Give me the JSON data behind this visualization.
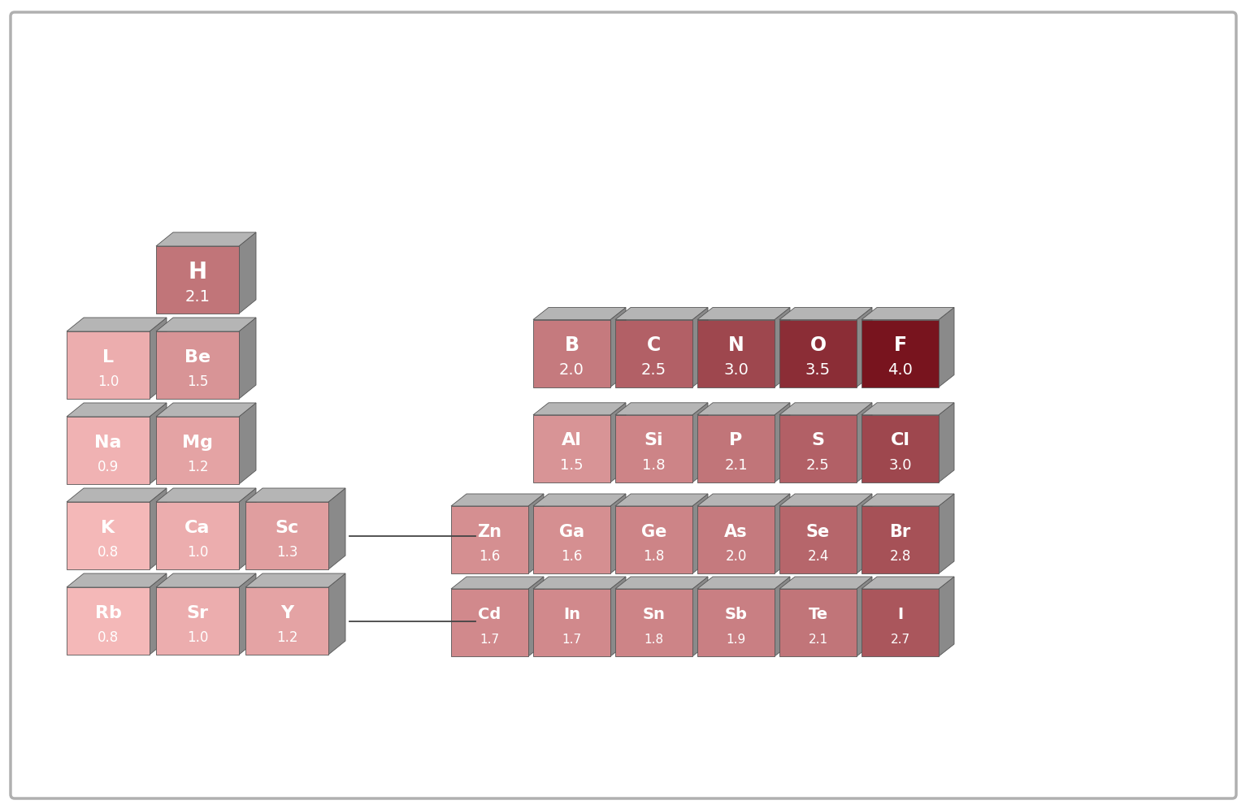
{
  "background": "#ffffff",
  "elements_left": [
    {
      "symbol": "H",
      "value": "2.1",
      "col": 1,
      "row": 0
    },
    {
      "symbol": "L",
      "value": "1.0",
      "col": 0,
      "row": 1
    },
    {
      "symbol": "Be",
      "value": "1.5",
      "col": 1,
      "row": 1
    },
    {
      "symbol": "Na",
      "value": "0.9",
      "col": 0,
      "row": 2
    },
    {
      "symbol": "Mg",
      "value": "1.2",
      "col": 1,
      "row": 2
    },
    {
      "symbol": "K",
      "value": "0.8",
      "col": 0,
      "row": 3
    },
    {
      "symbol": "Ca",
      "value": "1.0",
      "col": 1,
      "row": 3
    },
    {
      "symbol": "Sc",
      "value": "1.3",
      "col": 2,
      "row": 3
    },
    {
      "symbol": "Rb",
      "value": "0.8",
      "col": 0,
      "row": 4
    },
    {
      "symbol": "Sr",
      "value": "1.0",
      "col": 1,
      "row": 4
    },
    {
      "symbol": "Y",
      "value": "1.2",
      "col": 2,
      "row": 4
    }
  ],
  "elements_right": [
    {
      "symbol": "B",
      "value": "2.0",
      "col": 0,
      "row": 3
    },
    {
      "symbol": "C",
      "value": "2.5",
      "col": 1,
      "row": 3
    },
    {
      "symbol": "N",
      "value": "3.0",
      "col": 2,
      "row": 3
    },
    {
      "symbol": "O",
      "value": "3.5",
      "col": 3,
      "row": 3
    },
    {
      "symbol": "F",
      "value": "4.0",
      "col": 4,
      "row": 3
    },
    {
      "symbol": "Al",
      "value": "1.5",
      "col": 0,
      "row": 2
    },
    {
      "symbol": "Si",
      "value": "1.8",
      "col": 1,
      "row": 2
    },
    {
      "symbol": "P",
      "value": "2.1",
      "col": 2,
      "row": 2
    },
    {
      "symbol": "S",
      "value": "2.5",
      "col": 3,
      "row": 2
    },
    {
      "symbol": "Cl",
      "value": "3.0",
      "col": 4,
      "row": 2
    },
    {
      "symbol": "Zn",
      "value": "1.6",
      "col": 0,
      "row": 1
    },
    {
      "symbol": "Ga",
      "value": "1.6",
      "col": 1,
      "row": 1
    },
    {
      "symbol": "Ge",
      "value": "1.8",
      "col": 2,
      "row": 1
    },
    {
      "symbol": "As",
      "value": "2.0",
      "col": 3,
      "row": 1
    },
    {
      "symbol": "Se",
      "value": "2.4",
      "col": 4,
      "row": 1
    },
    {
      "symbol": "Br",
      "value": "2.8",
      "col": 5,
      "row": 1
    },
    {
      "symbol": "Cd",
      "value": "1.7",
      "col": 0,
      "row": 0
    },
    {
      "symbol": "In",
      "value": "1.7",
      "col": 1,
      "row": 0
    },
    {
      "symbol": "Sn",
      "value": "1.8",
      "col": 2,
      "row": 0
    },
    {
      "symbol": "Sb",
      "value": "1.9",
      "col": 3,
      "row": 0
    },
    {
      "symbol": "Te",
      "value": "2.1",
      "col": 4,
      "row": 0
    },
    {
      "symbol": "I",
      "value": "2.7",
      "col": 5,
      "row": 0
    }
  ]
}
